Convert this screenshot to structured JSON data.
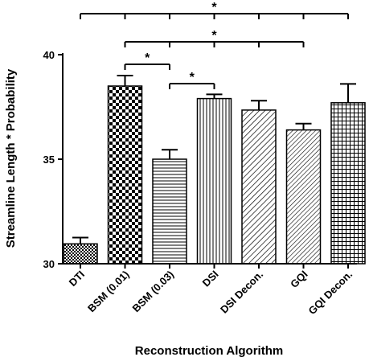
{
  "chart_data": {
    "type": "bar",
    "title": "",
    "xlabel": "Reconstruction Algorithm",
    "ylabel": "Streamline Length * Probability",
    "ylim": [
      30,
      40
    ],
    "yticks": [
      "30",
      "35",
      "40"
    ],
    "grid": false,
    "categories": [
      "DTI",
      "BSM (0.01)",
      "BSM (0.03)",
      "DSI",
      "DSI Decon.",
      "GQI",
      "GQI Decon."
    ],
    "values": [
      30.95,
      38.5,
      35.0,
      37.9,
      37.35,
      36.4,
      37.7
    ],
    "errors": [
      0.3,
      0.5,
      0.45,
      0.2,
      0.45,
      0.3,
      0.9
    ],
    "fills": [
      "dense-checker",
      "coarse-checker",
      "horizontal-lines",
      "vertical-lines",
      "diagonal-hatch",
      "diagonal-hatch-dense",
      "grid"
    ],
    "significance": [
      {
        "from": 0,
        "to": 6,
        "label": "*"
      },
      {
        "from": 1,
        "to": 5,
        "label": "*"
      },
      {
        "from": 1,
        "to": 2,
        "label": "*"
      },
      {
        "from": 2,
        "to": 3,
        "label": "*"
      }
    ],
    "colors": {
      "bar_stroke": "#000000",
      "pattern": "#000000",
      "background": "#ffffff"
    }
  }
}
